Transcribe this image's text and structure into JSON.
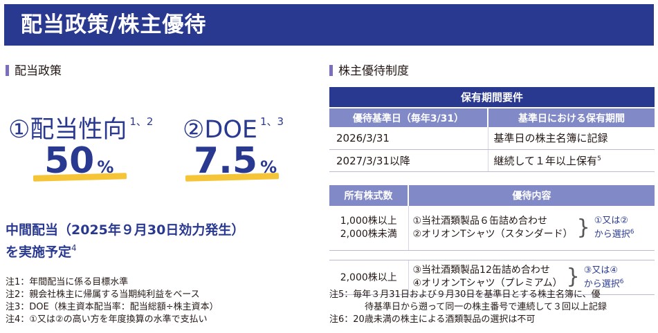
{
  "banner": {
    "title": "配当政策/株主優待"
  },
  "dividend": {
    "heading": "配当政策",
    "metric1": {
      "label": "①配当性向",
      "note_ref": "1、2",
      "value": "50",
      "unit": "%"
    },
    "metric2": {
      "label": "②DOE",
      "note_ref": "1、3",
      "value": "7.5",
      "unit": "%"
    },
    "interim": {
      "line1": "中間配当（2025年９月30日効力発生）",
      "line2": "を実施予定",
      "note_ref": "4"
    },
    "notes": [
      "注1：年間配当に係る目標水準",
      "注2：親会社株主に帰属する当期純利益をベース",
      "注3：DOE（株主資本配当率：配当総額÷株主資本）",
      "注4：①又は②の高い方を年度換算の水準で支払い"
    ]
  },
  "benefits": {
    "heading": "株主優待制度",
    "holding": {
      "title": "保有期間要件",
      "col1": "優待基準日（毎年3/31）",
      "col2": "基準日における保有期間",
      "rows": [
        {
          "date": "2026/3/31",
          "req": "基準日の株主名簿に記録",
          "note_ref": ""
        },
        {
          "date": "2027/3/31以降",
          "req": "継続して１年以上保有",
          "note_ref": "5"
        }
      ]
    },
    "content": {
      "col1": "所有株式数",
      "col2": "優待内容",
      "rows": [
        {
          "shares1": "1,000株以上",
          "shares2": "2,000株未満",
          "item1": "①当社酒類製品６缶詰め合わせ",
          "item2": "②オリオンTシャツ（スタンダード）",
          "choice1": "①又は②",
          "choice2": "から選択",
          "note_ref": "6"
        },
        {
          "shares1": "2,000株以上",
          "shares2": "",
          "item1": "③当社酒類製品12缶詰め合わせ",
          "item2": "④オリオンTシャツ（プレミアム）",
          "choice1": "③又は④",
          "choice2": "から選択",
          "note_ref": "6"
        }
      ]
    },
    "notes": [
      {
        "label": "注5：",
        "text": "毎年３月31日および９月30日を基準日とする株主名簿に、優"
      },
      {
        "label": "",
        "text": "待基準日から遡って同一の株主番号で連続して３回以上記録"
      },
      {
        "label": "注6：",
        "text": "20歳未満の株主による酒類製品の選択は不可"
      }
    ]
  },
  "colors": {
    "navy": "#2a3990",
    "mid": "#8189c6",
    "accent_bar": "#7b6fbd",
    "highlight": "#f5c437"
  }
}
